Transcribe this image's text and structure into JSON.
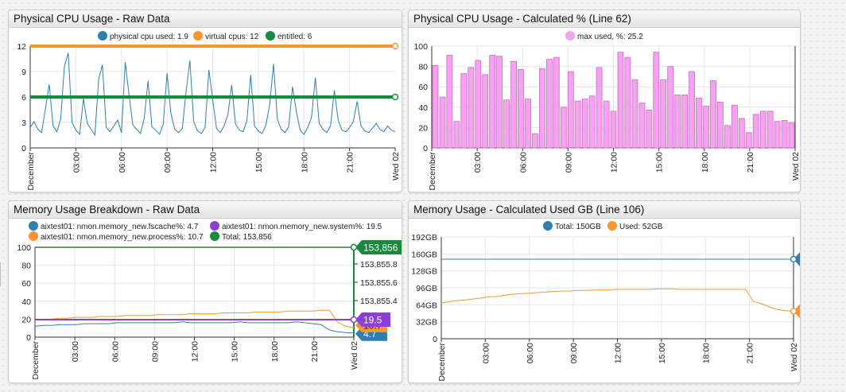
{
  "panels": [
    {
      "id": "p1",
      "title": "Physical CPU Usage - Raw Data",
      "legend": [
        "physical cpu used: 1.9",
        "virtual cpus: 12",
        "entitled: 6"
      ]
    },
    {
      "id": "p2",
      "title": "Physical CPU Usage - Calculated % (Line 62)",
      "legend": [
        "max used, %: 25.2"
      ]
    },
    {
      "id": "p3",
      "title": "Memory Usage Breakdown - Raw Data",
      "legend": [
        "aixtest01: nmon.memory_new.fscache%: 4.7",
        "aixtest01: nmon.memory_new.system%: 19.5",
        "aixtest01: nmon.memory_new.process%: 10.7",
        "Total: 153,856"
      ]
    },
    {
      "id": "p4",
      "title": "Memory Usage - Calculated Used GB (Line 106)",
      "legend": [
        "Total: 150GB",
        "Used: 52GB"
      ]
    }
  ],
  "chart_data": [
    {
      "type": "line",
      "title": "Physical CPU Usage - Raw Data",
      "x_ticks": [
        "December",
        "03:00",
        "06:00",
        "09:00",
        "12:00",
        "15:00",
        "18:00",
        "21:00",
        "Wed 02"
      ],
      "y_ticks": [
        "0",
        "3",
        "6",
        "9",
        "12"
      ],
      "ylim": [
        0,
        12
      ],
      "series": [
        {
          "name": "physical cpu used",
          "color": "#2e7fb0",
          "last": 1.9,
          "values": [
            2.4,
            3.1,
            2.2,
            1.8,
            4.6,
            7.5,
            2.6,
            1.9,
            3.4,
            9.6,
            11.2,
            3.0,
            2.1,
            1.6,
            5.8,
            2.9,
            2.2,
            1.5,
            8.1,
            9.8,
            2.4,
            1.9,
            2.6,
            3.3,
            1.8,
            10.1,
            6.2,
            2.7,
            2.2,
            1.7,
            3.5,
            7.9,
            2.5,
            2.1,
            1.6,
            2.8,
            8.8,
            4.1,
            2.2,
            1.8,
            2.3,
            6.6,
            10.3,
            3.1,
            2.0,
            1.7,
            2.4,
            9.2,
            5.7,
            2.3,
            1.8,
            2.6,
            3.9,
            7.4,
            2.8,
            2.1,
            1.9,
            3.2,
            8.6,
            2.6,
            2.0,
            1.7,
            2.7,
            5.1,
            9.9,
            3.4,
            2.2,
            1.8,
            2.5,
            7.2,
            4.3,
            2.1,
            1.6,
            2.4,
            3.6,
            8.3,
            2.9,
            2.2,
            1.8,
            2.6,
            6.8,
            3.3,
            2.1,
            1.9,
            2.4,
            3.1,
            5.5,
            2.6,
            2.0,
            1.8,
            2.3,
            2.9,
            2.2,
            1.9,
            2.6,
            2.1,
            1.9
          ]
        },
        {
          "name": "virtual cpus",
          "color": "#f7962f",
          "last": 12,
          "values": [
            12,
            12
          ]
        },
        {
          "name": "entitled",
          "color": "#178a3b",
          "last": 6,
          "values": [
            6,
            6
          ]
        }
      ]
    },
    {
      "type": "bar",
      "title": "Physical CPU Usage - Calculated % (Line 62)",
      "x_ticks": [
        "December",
        "03:00",
        "06:00",
        "09:00",
        "12:00",
        "15:00",
        "18:00",
        "21:00",
        "Wed 02"
      ],
      "y_ticks": [
        "0",
        "20",
        "40",
        "60",
        "80",
        "100"
      ],
      "ylim": [
        0,
        100
      ],
      "series": [
        {
          "name": "max used, %",
          "color": "#f5a3f0",
          "last": 25.2,
          "values": [
            81,
            50,
            91,
            26,
            73,
            79,
            86,
            72,
            91,
            90,
            47,
            85,
            77,
            48,
            14,
            78,
            87,
            89,
            40,
            75,
            46,
            48,
            51,
            79,
            46,
            36,
            94,
            89,
            67,
            44,
            37,
            94,
            67,
            80,
            52,
            52,
            75,
            49,
            41,
            66,
            45,
            22,
            42,
            29,
            15,
            33,
            36,
            36,
            26,
            27,
            25
          ]
        }
      ]
    },
    {
      "type": "line",
      "title": "Memory Usage Breakdown - Raw Data",
      "x_ticks": [
        "December",
        "03:00",
        "06:00",
        "09:00",
        "12:00",
        "15:00",
        "18:00",
        "21:00",
        "Wed 02"
      ],
      "y_ticks": [
        "0",
        "20",
        "40",
        "60",
        "80",
        "100"
      ],
      "y2_ticks": [
        "153,855.8",
        "153,855.6",
        "153,855.4"
      ],
      "ylim": [
        0,
        100
      ],
      "end_labels": [
        "153,856",
        "19.5",
        "10.7",
        "4.7"
      ],
      "series": [
        {
          "name": "fscache%",
          "color": "#2e7fb0",
          "last": 4.7,
          "values": [
            12,
            13,
            13,
            14,
            14,
            14,
            15,
            15,
            15,
            15,
            16,
            16,
            16,
            16,
            16,
            16,
            16,
            16,
            17,
            16,
            16,
            16,
            16,
            16,
            16,
            17,
            16,
            16,
            16,
            16,
            16,
            16,
            17,
            16,
            15,
            14,
            8,
            6,
            5,
            4.7
          ]
        },
        {
          "name": "system%",
          "color": "#8b3fd6",
          "last": 19.5,
          "values": [
            19.5,
            19.5
          ]
        },
        {
          "name": "process%",
          "color": "#f7962f",
          "last": 10.7,
          "values": [
            19,
            20,
            20,
            21,
            21,
            22,
            22,
            22,
            23,
            23,
            23,
            24,
            24,
            24,
            24,
            25,
            25,
            25,
            25,
            26,
            26,
            26,
            26,
            27,
            27,
            27,
            27,
            28,
            28,
            28,
            28,
            29,
            29,
            29,
            29,
            30,
            30,
            17,
            12,
            10.7
          ]
        },
        {
          "name": "Total",
          "color": "#178a3b",
          "last": 153856,
          "values": [
            153856,
            153856
          ]
        }
      ]
    },
    {
      "type": "line",
      "title": "Memory Usage - Calculated Used GB (Line 106)",
      "x_ticks": [
        "December",
        "03:00",
        "06:00",
        "09:00",
        "12:00",
        "15:00",
        "18:00",
        "21:00",
        "Wed 02"
      ],
      "y_ticks": [
        "0",
        "32GB",
        "64GB",
        "96GB",
        "128GB",
        "160GB",
        "192GB"
      ],
      "ylim": [
        0,
        192
      ],
      "end_labels": [
        "150GB",
        "52GB"
      ],
      "series": [
        {
          "name": "Total",
          "color": "#2e7fb0",
          "last": 150,
          "values": [
            150,
            150
          ]
        },
        {
          "name": "Used",
          "color": "#f7962f",
          "last": 52,
          "values": [
            67,
            70,
            72,
            73,
            75,
            77,
            79,
            80,
            82,
            84,
            85,
            86,
            87,
            88,
            89,
            90,
            90,
            91,
            91,
            92,
            92,
            92,
            93,
            93,
            93,
            93,
            93,
            94,
            94,
            94,
            93,
            93,
            93,
            93,
            93,
            93,
            93,
            93,
            93,
            70,
            66,
            60,
            55,
            53,
            52
          ]
        }
      ]
    }
  ]
}
